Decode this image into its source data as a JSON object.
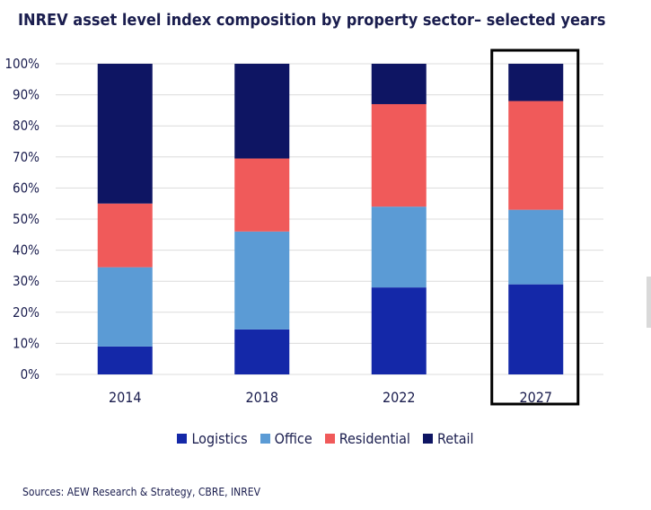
{
  "title": "INREV asset level index composition by property sector– selected years",
  "source": "Sources: AEW Research & Strategy, CBRE, INREV",
  "chart_data": {
    "type": "bar",
    "stacked": true,
    "categories": [
      "2014",
      "2018",
      "2022",
      "2027"
    ],
    "yticks": [
      "0%",
      "10%",
      "20%",
      "30%",
      "40%",
      "50%",
      "60%",
      "70%",
      "80%",
      "90%",
      "100%"
    ],
    "ylim": [
      0,
      100
    ],
    "grid": "horizontal",
    "legend_position": "bottom",
    "highlighted_category": "2027",
    "series": [
      {
        "name": "Logistics",
        "color": "#1428a8",
        "values": [
          9,
          14.5,
          28,
          29
        ]
      },
      {
        "name": "Office",
        "color": "#5b9bd5",
        "values": [
          25.5,
          31.5,
          26,
          24
        ]
      },
      {
        "name": "Residential",
        "color": "#f05a5a",
        "values": [
          20.5,
          23.5,
          33,
          35
        ]
      },
      {
        "name": "Retail",
        "color": "#0e1563",
        "values": [
          45,
          30.5,
          13,
          12
        ]
      }
    ]
  }
}
